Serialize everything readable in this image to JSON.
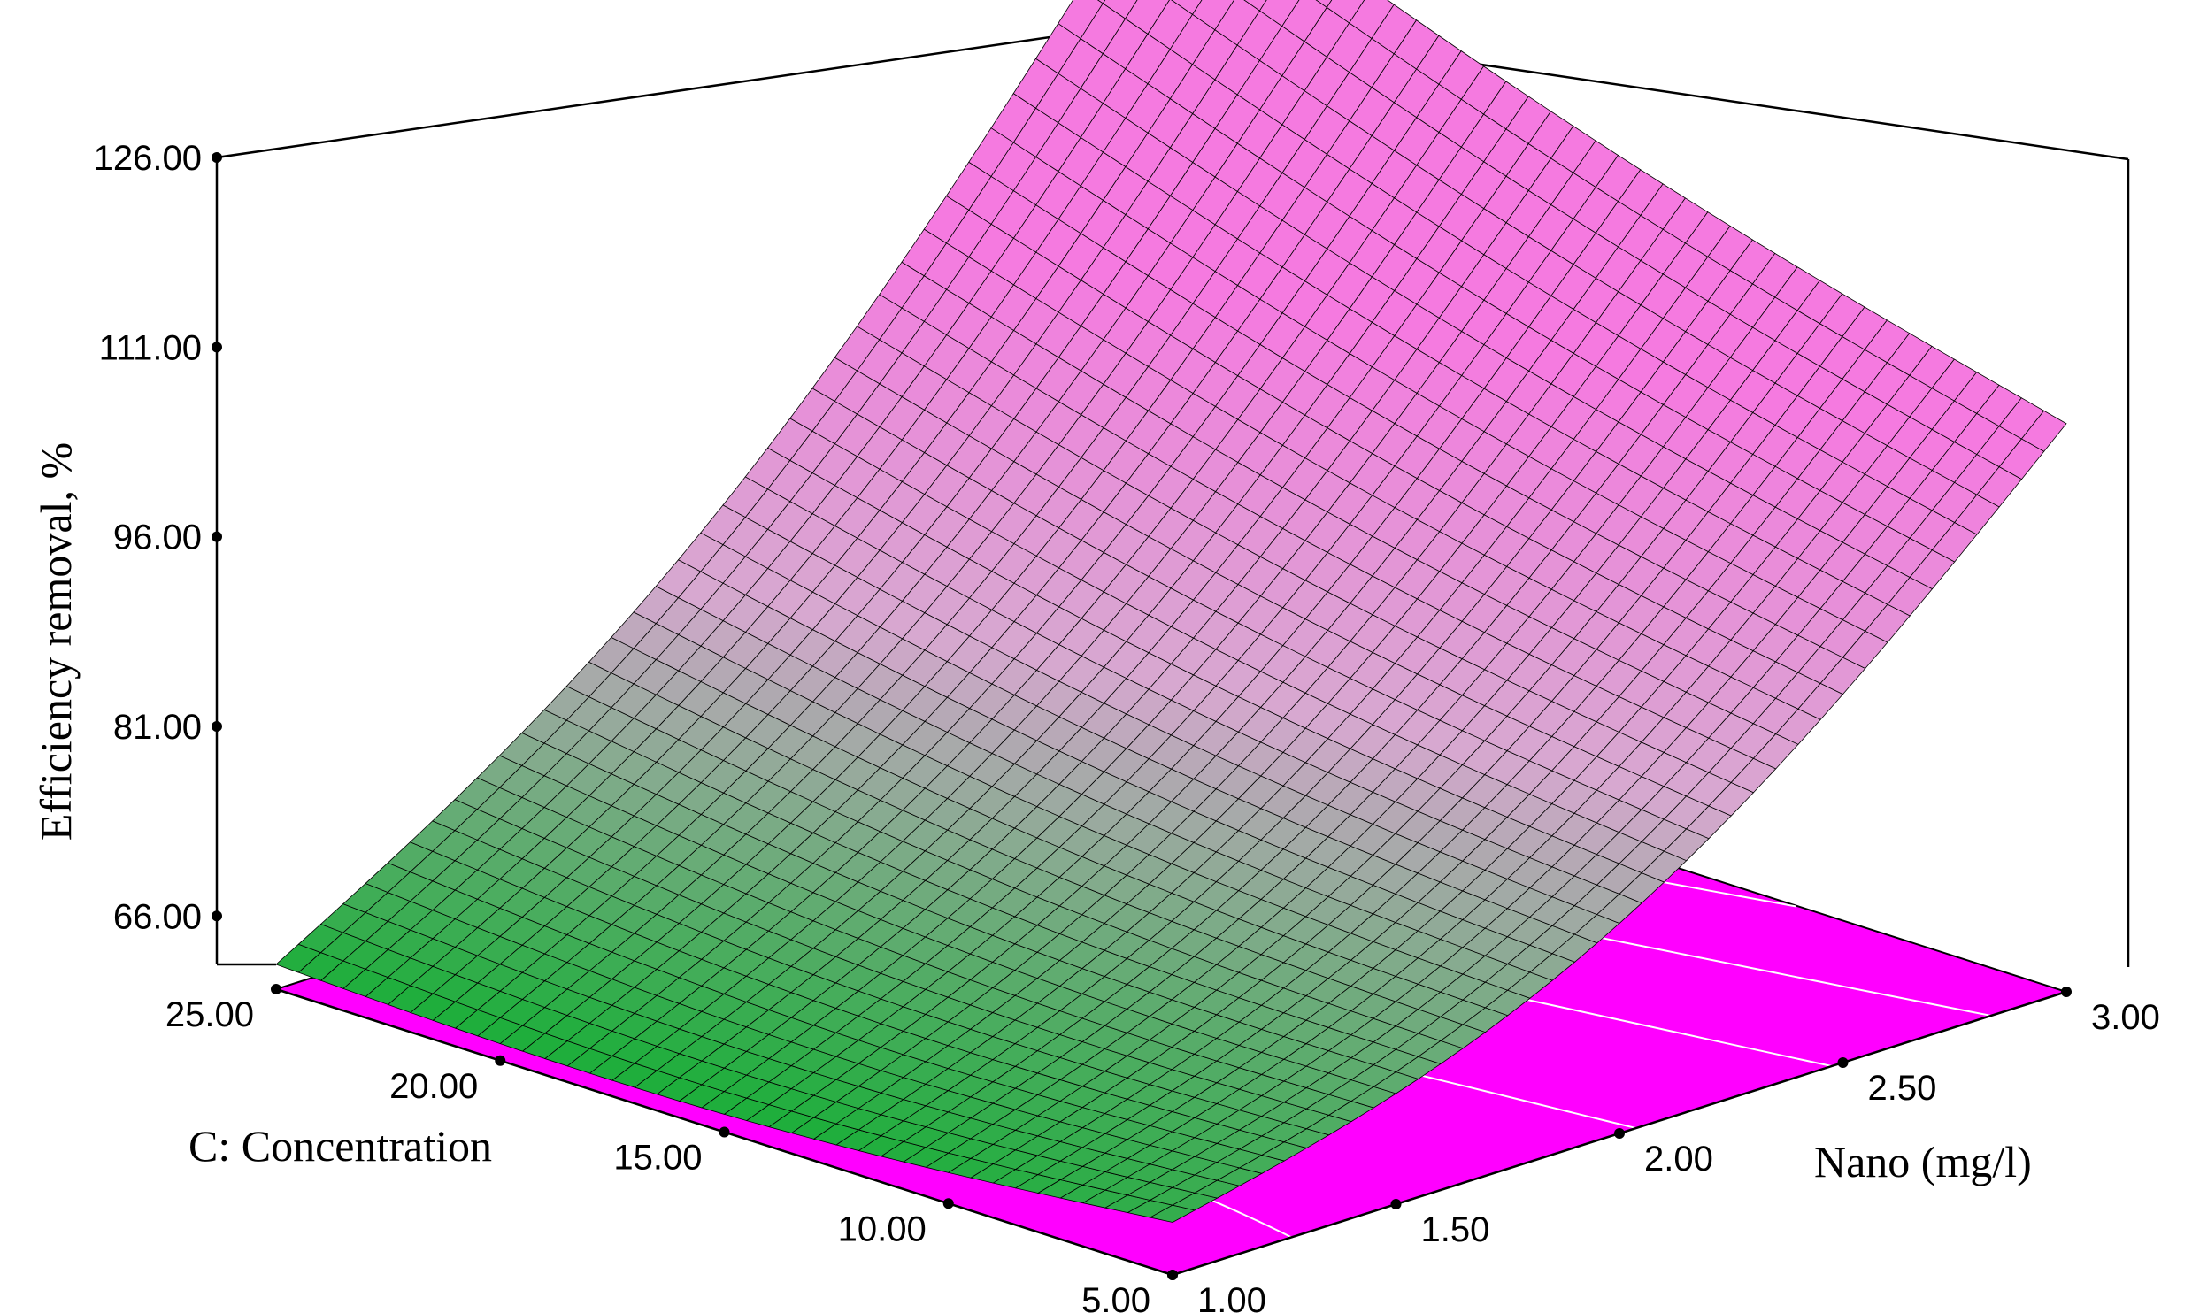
{
  "chart_data": {
    "type": "surface",
    "title": "",
    "zlabel": "Efficiency removal, %",
    "xlabel": "Nano (mg/l)",
    "ylabel": "C: Concentration",
    "x_range": [
      1.0,
      3.0
    ],
    "y_range": [
      5.0,
      25.0
    ],
    "zlim": [
      66.0,
      126.0
    ],
    "x_ticks": [
      "1.00",
      "1.50",
      "2.00",
      "2.50",
      "3.00"
    ],
    "y_ticks": [
      "5.00",
      "10.00",
      "15.00",
      "20.00",
      "25.00"
    ],
    "z_ticks": [
      "66.00",
      "81.00",
      "96.00",
      "111.00",
      "126.00"
    ],
    "corner_values": [
      {
        "nano": 1.0,
        "concentration": 25.0,
        "efficiency": 66.0
      },
      {
        "nano": 1.0,
        "concentration": 5.0,
        "efficiency": 68.0
      },
      {
        "nano": 3.0,
        "concentration": 25.0,
        "efficiency": 126.0
      },
      {
        "nano": 3.0,
        "concentration": 5.0,
        "efficiency": 105.0
      }
    ],
    "contours": "projected on base plane",
    "colors": {
      "low": "#1fae3c",
      "mid": "#d7a8d0",
      "high": "#f57ae0",
      "floor": "#ff00ff",
      "mesh": "#000000",
      "contour": "#ffffff"
    }
  }
}
